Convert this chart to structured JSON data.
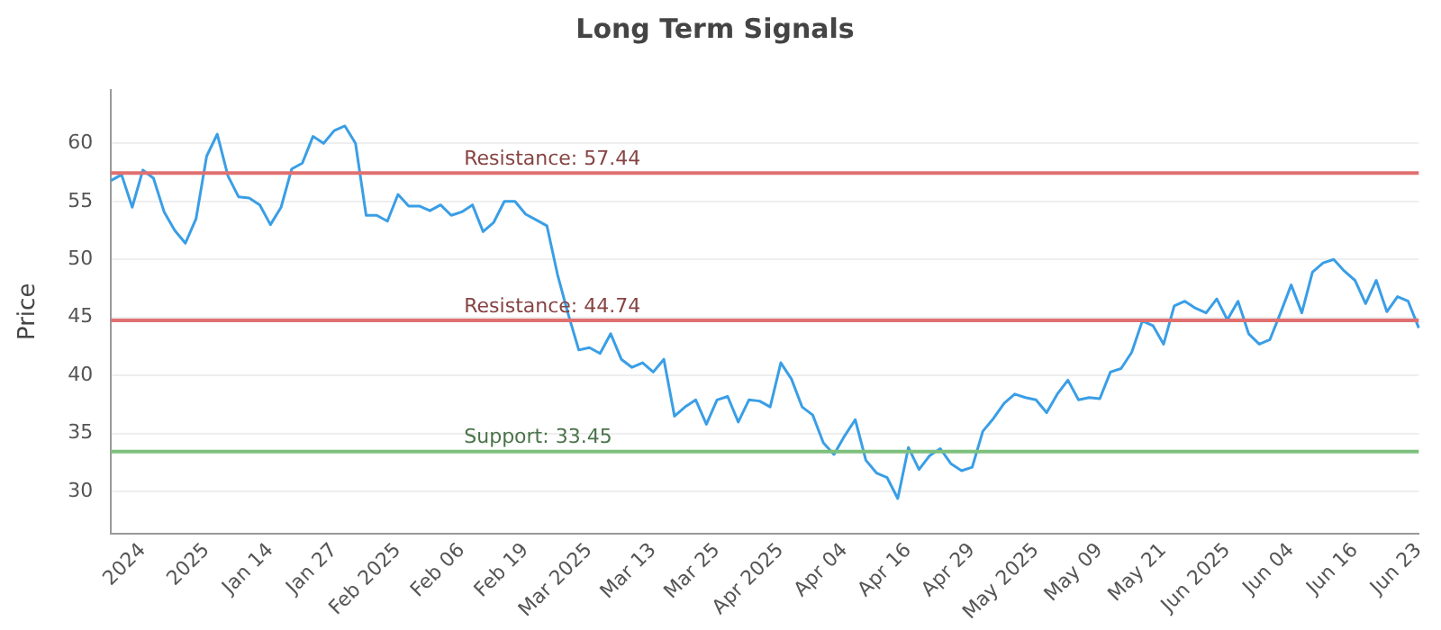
{
  "chart_data": {
    "type": "line",
    "title": "Long Term Signals",
    "ylabel": "Price",
    "categories": [
      null,
      null,
      null,
      "2024",
      null,
      null,
      null,
      null,
      null,
      "2025",
      null,
      null,
      null,
      null,
      null,
      "Jan 14",
      null,
      null,
      null,
      null,
      null,
      "Jan 27",
      null,
      null,
      null,
      null,
      null,
      "Feb 2025",
      null,
      null,
      null,
      null,
      null,
      "Feb 06",
      null,
      null,
      null,
      null,
      null,
      "Feb 19",
      null,
      null,
      null,
      null,
      null,
      "Mar 2025",
      null,
      null,
      null,
      null,
      null,
      "Mar 13",
      null,
      null,
      null,
      null,
      null,
      "Mar 25",
      null,
      null,
      null,
      null,
      null,
      "Apr 2025",
      null,
      null,
      null,
      null,
      null,
      "Apr 04",
      null,
      null,
      null,
      null,
      null,
      "Apr 16",
      null,
      null,
      null,
      null,
      null,
      "Apr 29",
      null,
      null,
      null,
      null,
      null,
      "May 2025",
      null,
      null,
      null,
      null,
      null,
      "May 09",
      null,
      null,
      null,
      null,
      null,
      "May 21",
      null,
      null,
      null,
      null,
      null,
      "Jun 2025",
      null,
      null,
      null,
      null,
      null,
      "Jun 04",
      null,
      null,
      null,
      null,
      null,
      "Jun 16",
      null,
      null,
      null,
      null,
      null,
      "Jun 23"
    ],
    "series": [
      {
        "color": "#3a9ee6",
        "values": [
          56.8,
          57.3,
          54.5,
          57.7,
          57.0,
          54.1,
          52.5,
          51.4,
          53.5,
          58.9,
          60.8,
          57.2,
          55.4,
          55.3,
          54.7,
          53.0,
          54.5,
          57.8,
          58.3,
          60.6,
          60.0,
          61.1,
          61.5,
          60.0,
          53.8,
          53.8,
          53.3,
          55.6,
          54.6,
          54.6,
          54.2,
          54.7,
          53.8,
          54.1,
          54.7,
          52.4,
          53.2,
          55.0,
          55.0,
          53.9,
          53.4,
          52.9,
          48.7,
          45.3,
          42.2,
          42.4,
          41.9,
          43.6,
          41.4,
          40.7,
          41.1,
          40.3,
          41.4,
          36.5,
          37.3,
          37.9,
          35.8,
          37.9,
          38.2,
          36.0,
          37.9,
          37.8,
          37.3,
          41.1,
          39.7,
          37.3,
          36.6,
          34.2,
          33.2,
          34.8,
          36.2,
          32.7,
          31.6,
          31.2,
          29.4,
          33.8,
          31.9,
          33.1,
          33.7,
          32.4,
          31.8,
          32.1,
          35.2,
          36.3,
          37.6,
          38.4,
          38.1,
          37.9,
          36.8,
          38.4,
          39.6,
          37.9,
          38.1,
          38.0,
          40.3,
          40.6,
          42.0,
          44.7,
          44.3,
          42.7,
          46.0,
          46.4,
          45.8,
          45.4,
          46.6,
          44.8,
          46.4,
          43.6,
          42.7,
          43.1,
          45.4,
          47.8,
          45.4,
          48.9,
          49.7,
          50.0,
          49.0,
          48.2,
          46.2,
          48.2,
          45.5,
          46.8,
          46.4,
          44.1
        ]
      }
    ],
    "ylim": [
      26.4,
      64.6
    ],
    "yticks": [
      30,
      35,
      40,
      45,
      50,
      55,
      60
    ],
    "grid": "y",
    "legend": false,
    "marker": "none",
    "line_style": "solid",
    "ref_lines": [
      {
        "axis": "y",
        "value": 57.44,
        "label": "Resistance: 57.44",
        "color": "#e07070"
      },
      {
        "axis": "y",
        "value": 44.74,
        "label": "Resistance: 44.74",
        "color": "#e07070"
      },
      {
        "axis": "y",
        "value": 33.45,
        "label": "Support: 33.45",
        "color": "#7dc07d"
      }
    ]
  }
}
